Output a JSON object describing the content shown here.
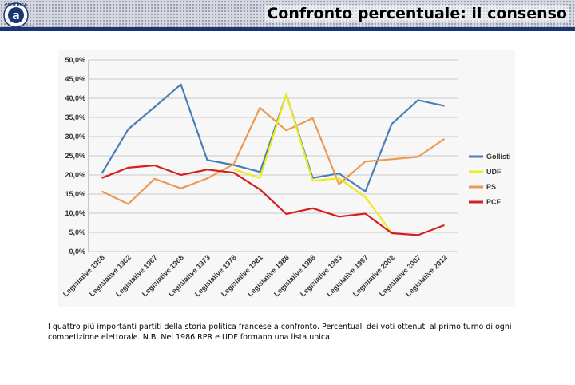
{
  "slide": {
    "title": "Confronto percentuale: il consenso",
    "caption": "I quattro più importanti partiti della storia politica francese a confronto. Percentuali dei voti ottenuti al primo turno di ogni competizione elettorale. N.B. Nel 1986 RPR e UDF formano una lista unica."
  },
  "logo": {
    "arc_text": "FEDERICA",
    "letter": "a",
    "small_text": "web learning"
  },
  "chart_data": {
    "type": "line",
    "title": "",
    "xlabel": "",
    "ylabel": "",
    "ylim": [
      0,
      50
    ],
    "y_ticks": [
      "0,0%",
      "5,0%",
      "10,0%",
      "15,0%",
      "20,0%",
      "25,0%",
      "30,0%",
      "35,0%",
      "40,0%",
      "45,0%",
      "50,0%"
    ],
    "y_tick_values": [
      0,
      5,
      10,
      15,
      20,
      25,
      30,
      35,
      40,
      45,
      50
    ],
    "categories": [
      "Legislative 1958",
      "Legislative 1962",
      "Legislative 1967",
      "Legislative 1968",
      "Legislative 1973",
      "Legislative 1978",
      "Legislative 1981",
      "Legislative 1986",
      "Legislative 1988",
      "Legislative 1993",
      "Legislative 1997",
      "Legislative 2002",
      "Legislative 2007",
      "Legislative 2012"
    ],
    "grid": true,
    "legend_position": "right",
    "series": [
      {
        "name": "Gollisti",
        "color": "#4a7fb5",
        "values": [
          20.4,
          31.9,
          37.7,
          43.6,
          23.9,
          22.6,
          20.8,
          41.0,
          19.2,
          20.4,
          15.7,
          33.3,
          39.5,
          38.0
        ]
      },
      {
        "name": "UDF",
        "color": "#ecec1c",
        "values": [
          null,
          null,
          null,
          null,
          null,
          21.5,
          19.2,
          41.0,
          18.5,
          19.1,
          14.2,
          4.9,
          null,
          null
        ]
      },
      {
        "name": "PS",
        "color": "#eb9a52",
        "values": [
          15.7,
          12.4,
          19.0,
          16.5,
          19.1,
          22.8,
          37.5,
          31.6,
          34.8,
          17.6,
          23.5,
          24.1,
          24.7,
          29.4
        ]
      },
      {
        "name": "PCF",
        "color": "#d42020",
        "values": [
          19.2,
          21.9,
          22.5,
          20.0,
          21.4,
          20.6,
          16.2,
          9.8,
          11.3,
          9.1,
          9.9,
          4.8,
          4.3,
          6.9
        ]
      }
    ]
  }
}
